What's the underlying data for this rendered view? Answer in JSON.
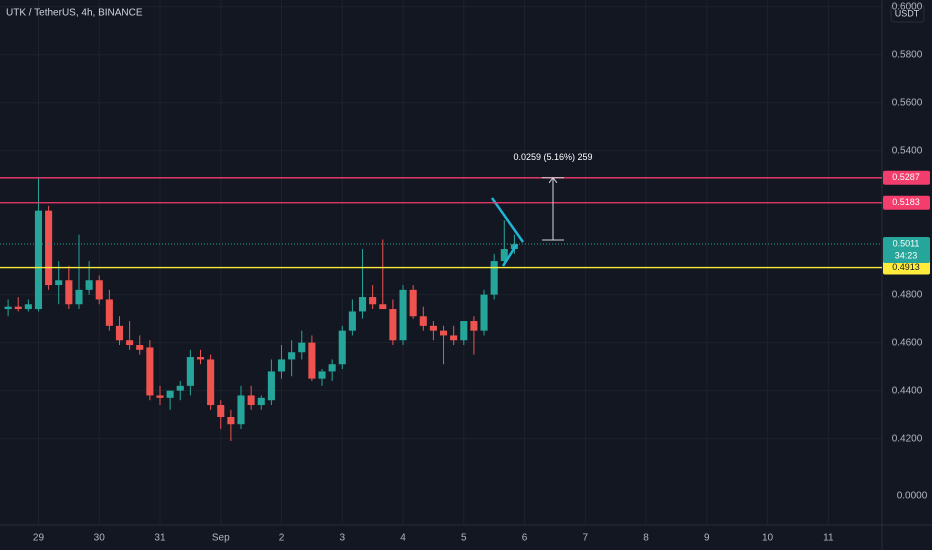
{
  "chart_data": {
    "type": "candlestick",
    "title": "UTK / TetherUS, 4h, BINANCE",
    "currency_button": "USDT",
    "axis_note": "0.0000",
    "up_color": "#26a69a",
    "down_color": "#ef5350",
    "background": "#131722",
    "grid": true,
    "x": [
      0,
      1,
      2,
      3,
      4,
      5,
      6,
      7,
      8,
      9,
      10,
      11,
      12,
      13,
      14,
      15,
      16,
      17,
      18,
      19,
      20,
      21,
      22,
      23,
      24,
      25,
      26,
      27,
      28,
      29,
      30,
      31,
      32,
      33,
      34,
      35,
      36,
      37,
      38,
      39,
      40,
      41,
      42,
      43,
      44,
      45,
      46,
      47,
      48,
      49,
      50
    ],
    "open": [
      0.474,
      0.475,
      0.474,
      0.474,
      0.515,
      0.484,
      0.486,
      0.476,
      0.482,
      0.486,
      0.478,
      0.467,
      0.461,
      0.459,
      0.458,
      0.438,
      0.437,
      0.44,
      0.442,
      0.454,
      0.453,
      0.434,
      0.429,
      0.426,
      0.438,
      0.434,
      0.436,
      0.448,
      0.453,
      0.456,
      0.46,
      0.445,
      0.448,
      0.451,
      0.465,
      0.473,
      0.479,
      0.476,
      0.474,
      0.461,
      0.482,
      0.471,
      0.467,
      0.465,
      0.463,
      0.461,
      0.469,
      0.465,
      0.48,
      0.494,
      0.499
    ],
    "high": [
      0.478,
      0.479,
      0.478,
      0.529,
      0.517,
      0.494,
      0.492,
      0.505,
      0.494,
      0.488,
      0.482,
      0.471,
      0.469,
      0.463,
      0.461,
      0.442,
      0.44,
      0.444,
      0.457,
      0.457,
      0.455,
      0.436,
      0.432,
      0.442,
      0.442,
      0.438,
      0.453,
      0.459,
      0.461,
      0.465,
      0.463,
      0.449,
      0.453,
      0.467,
      0.478,
      0.499,
      0.484,
      0.503,
      0.478,
      0.484,
      0.484,
      0.475,
      0.469,
      0.467,
      0.467,
      0.469,
      0.471,
      0.482,
      0.497,
      0.511,
      0.505
    ],
    "low": [
      0.471,
      0.473,
      0.473,
      0.473,
      0.482,
      0.476,
      0.474,
      0.474,
      0.48,
      0.476,
      0.465,
      0.459,
      0.457,
      0.455,
      0.436,
      0.434,
      0.432,
      0.436,
      0.438,
      0.451,
      0.432,
      0.424,
      0.419,
      0.424,
      0.432,
      0.432,
      0.434,
      0.445,
      0.446,
      0.453,
      0.444,
      0.442,
      0.444,
      0.449,
      0.463,
      0.47,
      0.474,
      0.474,
      0.459,
      0.459,
      0.47,
      0.465,
      0.461,
      0.451,
      0.459,
      0.459,
      0.455,
      0.463,
      0.478,
      0.492,
      0.497
    ],
    "close": [
      0.475,
      0.474,
      0.476,
      0.515,
      0.484,
      0.486,
      0.476,
      0.482,
      0.486,
      0.478,
      0.467,
      0.461,
      0.459,
      0.457,
      0.438,
      0.437,
      0.44,
      0.442,
      0.454,
      0.453,
      0.434,
      0.429,
      0.426,
      0.438,
      0.434,
      0.437,
      0.448,
      0.453,
      0.456,
      0.46,
      0.445,
      0.448,
      0.451,
      0.465,
      0.473,
      0.479,
      0.476,
      0.474,
      0.461,
      0.482,
      0.471,
      0.467,
      0.465,
      0.463,
      0.461,
      0.469,
      0.465,
      0.48,
      0.494,
      0.499,
      0.501
    ],
    "xlim": [
      -0.8,
      86.3
    ],
    "xticks": [
      {
        "value": 3,
        "label": "29"
      },
      {
        "value": 9,
        "label": "30"
      },
      {
        "value": 15,
        "label": "31"
      },
      {
        "value": 21,
        "label": "Sep"
      },
      {
        "value": 27,
        "label": "2"
      },
      {
        "value": 33,
        "label": "3"
      },
      {
        "value": 39,
        "label": "4"
      },
      {
        "value": 45,
        "label": "5"
      },
      {
        "value": 51,
        "label": "6"
      },
      {
        "value": 57,
        "label": "7"
      },
      {
        "value": 63,
        "label": "8"
      },
      {
        "value": 69,
        "label": "9"
      },
      {
        "value": 75,
        "label": "10"
      },
      {
        "value": 81,
        "label": "11"
      }
    ],
    "ylim": [
      0.384,
      0.6028
    ],
    "yticks": [
      {
        "value": 0.6,
        "label": "0.6000"
      },
      {
        "value": 0.58,
        "label": "0.5800"
      },
      {
        "value": 0.56,
        "label": "0.5600"
      },
      {
        "value": 0.54,
        "label": "0.5400"
      },
      {
        "value": 0.48,
        "label": "0.4800"
      },
      {
        "value": 0.46,
        "label": "0.4600"
      },
      {
        "value": 0.44,
        "label": "0.4400"
      },
      {
        "value": 0.42,
        "label": "0.4200"
      }
    ],
    "levels": [
      {
        "value": 0.5287,
        "color": "#f23d6d"
      },
      {
        "value": 0.5183,
        "color": "#f23d6d"
      },
      {
        "value": 0.4913,
        "color": "#ffeb3b"
      }
    ],
    "last_price": {
      "value": 0.5011,
      "countdown": "34:23",
      "color": "#26a69a"
    },
    "measure": {
      "label": "0.0259 (5.16%) 259",
      "from": 0.5028,
      "to": 0.5287
    }
  }
}
